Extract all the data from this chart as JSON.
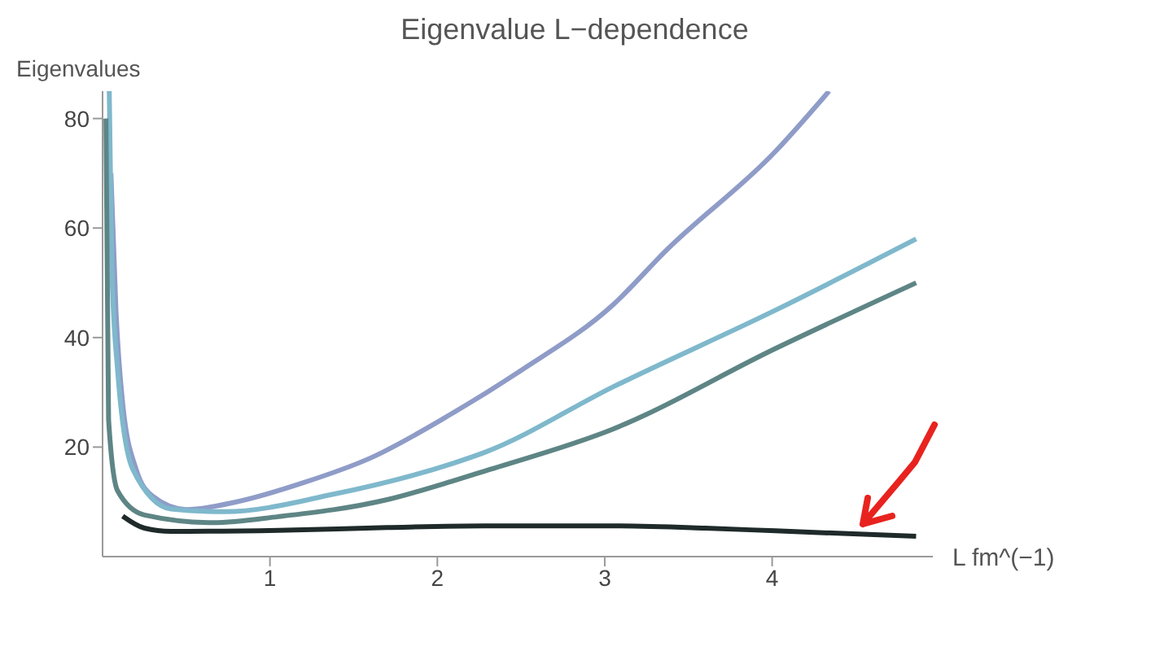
{
  "chart_data": {
    "type": "line",
    "title": "Eigenvalue L−dependence",
    "xlabel": "L fm^(−1)",
    "ylabel": "Eigenvalues",
    "xlim": [
      0,
      4.96
    ],
    "ylim": [
      0,
      85
    ],
    "xticks": [
      1,
      2,
      3,
      4
    ],
    "yticks": [
      20,
      40,
      60,
      80
    ],
    "grid": false,
    "marker": "none",
    "line_style": "solid",
    "series": [
      {
        "color": "#8f9cc8",
        "x": [
          0.05,
          0.08,
          0.12,
          0.2,
          0.3,
          0.5,
          0.8,
          1.2,
          1.6,
          2.08,
          2.5,
          3.05,
          3.37,
          4.02,
          4.34
        ],
        "values": [
          70,
          45,
          28,
          16,
          11,
          8.6,
          10,
          13.5,
          18,
          26,
          34,
          46,
          56,
          74,
          85
        ]
      },
      {
        "color": "#7fb8cc",
        "x": [
          0.04,
          0.055,
          0.09,
          0.18,
          0.41,
          0.73,
          1.38,
          2.09,
          2.28,
          3.05,
          4.02,
          4.86
        ],
        "values": [
          85,
          53,
          34,
          16,
          8.7,
          8.2,
          11.4,
          17,
          19,
          31,
          45,
          58
        ]
      },
      {
        "color": "#5e8585",
        "x": [
          0.02,
          0.036,
          0.09,
          0.25,
          0.66,
          1.05,
          1.7,
          2.08,
          2.28,
          3.05,
          4.02,
          4.86
        ],
        "values": [
          80,
          25,
          12,
          7.6,
          6.2,
          7.3,
          10.4,
          13.7,
          15.6,
          23.3,
          38,
          50
        ]
      },
      {
        "color": "#1f2a2a",
        "x": [
          0.12,
          0.25,
          0.41,
          1.05,
          1.7,
          2.28,
          3.05,
          3.6,
          4.02,
          4.86
        ],
        "values": [
          7.4,
          5.2,
          4.6,
          4.8,
          5.3,
          5.6,
          5.6,
          5.2,
          4.7,
          3.7
        ]
      }
    ]
  }
}
